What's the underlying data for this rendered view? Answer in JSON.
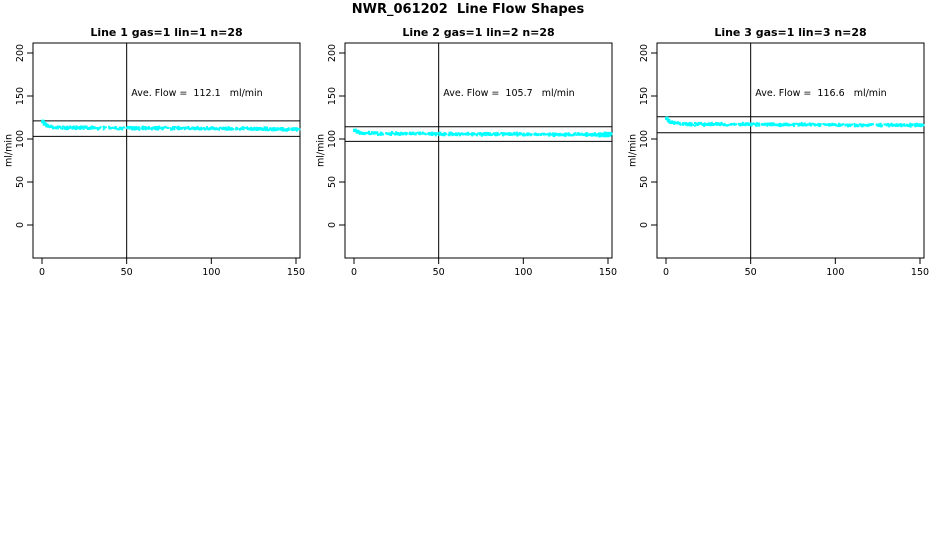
{
  "header": {
    "title": "NWR_061202  Line Flow Shapes"
  },
  "colors": {
    "points": "#00ffff",
    "axis": "#000000",
    "text": "#000000",
    "background": "#ffffff"
  },
  "chart_data": [
    {
      "type": "scatter",
      "title": "Line 1 gas=1 lin=1 n=28",
      "annotation": "Ave. Flow =  112.1   ml/min",
      "ave_flow": 112.1,
      "gas": 1,
      "lin": 1,
      "n": 28,
      "xlabel": "",
      "ylabel": "ml/min",
      "x_ticks": [
        0,
        50,
        100,
        150
      ],
      "y_ticks": [
        0,
        50,
        100,
        150,
        200
      ],
      "xlim": [
        0,
        155
      ],
      "ylim": [
        0,
        210
      ],
      "grid": false,
      "vline_x": 50,
      "hlines": [
        121.1,
        103.1
      ],
      "x_range": [
        0.5,
        152
      ],
      "band_halfwidth": 2.0,
      "profile": [
        [
          0.5,
          120.5
        ],
        [
          1.5,
          117.5
        ],
        [
          3,
          115.5
        ],
        [
          5,
          114.3
        ],
        [
          8,
          113.6
        ],
        [
          15,
          113.1
        ],
        [
          30,
          112.9
        ],
        [
          50,
          112.7
        ],
        [
          70,
          112.5
        ],
        [
          90,
          112.3
        ],
        [
          110,
          112.1
        ],
        [
          130,
          111.8
        ],
        [
          145,
          111.4
        ],
        [
          152,
          111.2
        ]
      ],
      "end_cluster": null
    },
    {
      "type": "scatter",
      "title": "Line 2 gas=1 lin=2 n=28",
      "annotation": "Ave. Flow =  105.7   ml/min",
      "ave_flow": 105.7,
      "gas": 1,
      "lin": 2,
      "n": 28,
      "xlabel": "",
      "ylabel": "ml/min",
      "x_ticks": [
        0,
        50,
        100,
        150
      ],
      "y_ticks": [
        0,
        50,
        100,
        150,
        200
      ],
      "xlim": [
        0,
        155
      ],
      "ylim": [
        0,
        210
      ],
      "grid": false,
      "vline_x": 50,
      "hlines": [
        114.2,
        97.2
      ],
      "x_range": [
        0.5,
        152
      ],
      "band_halfwidth": 2.0,
      "profile": [
        [
          0.5,
          110.0
        ],
        [
          2,
          108.2
        ],
        [
          4,
          107.2
        ],
        [
          7,
          106.7
        ],
        [
          12,
          106.4
        ],
        [
          25,
          106.2
        ],
        [
          45,
          106.0
        ],
        [
          65,
          105.8
        ],
        [
          85,
          105.6
        ],
        [
          105,
          105.4
        ],
        [
          125,
          105.2
        ],
        [
          140,
          105.1
        ],
        [
          148,
          105.3
        ],
        [
          152,
          105.6
        ]
      ],
      "end_cluster": {
        "x": [
          145,
          152
        ],
        "count": 35
      }
    },
    {
      "type": "scatter",
      "title": "Line 3 gas=1 lin=3 n=28",
      "annotation": "Ave. Flow =  116.6   ml/min",
      "ave_flow": 116.6,
      "gas": 1,
      "lin": 3,
      "n": 28,
      "xlabel": "",
      "ylabel": "ml/min",
      "x_ticks": [
        0,
        50,
        100,
        150
      ],
      "y_ticks": [
        0,
        50,
        100,
        150,
        200
      ],
      "xlim": [
        0,
        155
      ],
      "ylim": [
        0,
        210
      ],
      "grid": false,
      "vline_x": 50,
      "hlines": [
        125.9,
        107.3
      ],
      "x_range": [
        0.5,
        152
      ],
      "band_halfwidth": 2.0,
      "profile": [
        [
          0.5,
          124.0
        ],
        [
          1.5,
          121.5
        ],
        [
          3,
          119.5
        ],
        [
          5,
          118.4
        ],
        [
          8,
          117.8
        ],
        [
          14,
          117.4
        ],
        [
          28,
          117.1
        ],
        [
          50,
          116.9
        ],
        [
          72,
          116.7
        ],
        [
          94,
          116.5
        ],
        [
          116,
          116.4
        ],
        [
          135,
          116.2
        ],
        [
          152,
          116.1
        ]
      ],
      "end_cluster": null
    }
  ]
}
